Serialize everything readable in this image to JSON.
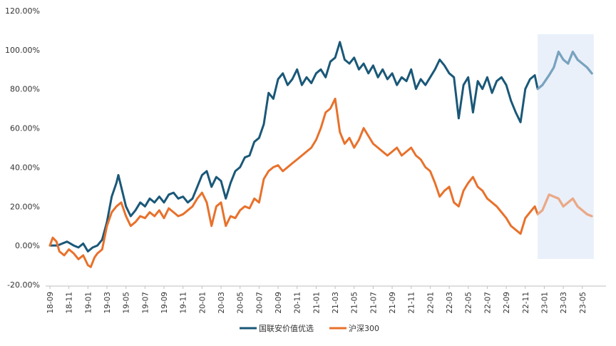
{
  "chart_data": {
    "type": "line",
    "title": "",
    "xlabel": "",
    "ylabel": "",
    "ylim": [
      -20,
      120
    ],
    "y_ticks": [
      -20,
      0,
      20,
      40,
      60,
      80,
      100,
      120
    ],
    "y_tick_labels": [
      "-20.00%",
      "0.00%",
      "20.00%",
      "40.00%",
      "60.00%",
      "80.00%",
      "100.00%",
      "120.00%"
    ],
    "grid": false,
    "legend_position": "bottom-center",
    "x_tick_labels": [
      "18-09",
      "18-11",
      "19-01",
      "19-03",
      "19-05",
      "19-07",
      "19-09",
      "19-11",
      "20-01",
      "20-03",
      "20-05",
      "20-07",
      "20-09",
      "20-11",
      "21-01",
      "21-03",
      "21-05",
      "21-07",
      "21-09",
      "21-11",
      "22-01",
      "22-03",
      "22-05",
      "22-07",
      "22-09",
      "22-11",
      "23-01",
      "23-03",
      "23-05"
    ],
    "highlight_region": {
      "from_month": 51.3,
      "to_month": 57.2,
      "label": ""
    },
    "series": [
      {
        "name": "国联安价值优选",
        "color": "#1a5878",
        "points": [
          [
            0,
            0
          ],
          [
            0.8,
            0
          ],
          [
            1.3,
            1
          ],
          [
            1.8,
            2
          ],
          [
            2.5,
            0
          ],
          [
            3,
            -1
          ],
          [
            3.5,
            1
          ],
          [
            4,
            -3
          ],
          [
            4.5,
            -1
          ],
          [
            5,
            0
          ],
          [
            5.5,
            3
          ],
          [
            6,
            12
          ],
          [
            6.5,
            25
          ],
          [
            7,
            32
          ],
          [
            7.2,
            36
          ],
          [
            7.5,
            30
          ],
          [
            8,
            20
          ],
          [
            8.5,
            15
          ],
          [
            9,
            18
          ],
          [
            9.5,
            22
          ],
          [
            10,
            20
          ],
          [
            10.5,
            24
          ],
          [
            11,
            22
          ],
          [
            11.5,
            25
          ],
          [
            12,
            22
          ],
          [
            12.5,
            26
          ],
          [
            13,
            27
          ],
          [
            13.5,
            24
          ],
          [
            14,
            25
          ],
          [
            14.5,
            22
          ],
          [
            15,
            24
          ],
          [
            15.5,
            30
          ],
          [
            16,
            36
          ],
          [
            16.5,
            38
          ],
          [
            17,
            30
          ],
          [
            17.5,
            35
          ],
          [
            18,
            33
          ],
          [
            18.5,
            24
          ],
          [
            19,
            32
          ],
          [
            19.5,
            38
          ],
          [
            20,
            40
          ],
          [
            20.5,
            45
          ],
          [
            21,
            46
          ],
          [
            21.5,
            53
          ],
          [
            22,
            55
          ],
          [
            22.5,
            62
          ],
          [
            23,
            78
          ],
          [
            23.5,
            75
          ],
          [
            24,
            85
          ],
          [
            24.5,
            88
          ],
          [
            25,
            82
          ],
          [
            25.5,
            85
          ],
          [
            26,
            90
          ],
          [
            26.5,
            82
          ],
          [
            27,
            86
          ],
          [
            27.5,
            83
          ],
          [
            28,
            88
          ],
          [
            28.5,
            90
          ],
          [
            29,
            86
          ],
          [
            29.5,
            94
          ],
          [
            30,
            96
          ],
          [
            30.5,
            104
          ],
          [
            31,
            95
          ],
          [
            31.5,
            93
          ],
          [
            32,
            96
          ],
          [
            32.5,
            90
          ],
          [
            33,
            93
          ],
          [
            33.5,
            88
          ],
          [
            34,
            92
          ],
          [
            34.5,
            86
          ],
          [
            35,
            90
          ],
          [
            35.5,
            85
          ],
          [
            36,
            88
          ],
          [
            36.5,
            82
          ],
          [
            37,
            86
          ],
          [
            37.5,
            84
          ],
          [
            38,
            90
          ],
          [
            38.5,
            80
          ],
          [
            39,
            85
          ],
          [
            39.5,
            82
          ],
          [
            40,
            86
          ],
          [
            40.5,
            90
          ],
          [
            41,
            95
          ],
          [
            41.5,
            92
          ],
          [
            42,
            88
          ],
          [
            42.5,
            86
          ],
          [
            43,
            65
          ],
          [
            43.5,
            82
          ],
          [
            44,
            86
          ],
          [
            44.5,
            68
          ],
          [
            45,
            84
          ],
          [
            45.5,
            80
          ],
          [
            46,
            86
          ],
          [
            46.5,
            78
          ],
          [
            47,
            84
          ],
          [
            47.5,
            86
          ],
          [
            48,
            82
          ],
          [
            48.5,
            74
          ],
          [
            49,
            68
          ],
          [
            49.5,
            63
          ],
          [
            50,
            80
          ],
          [
            50.5,
            85
          ],
          [
            51,
            87
          ],
          [
            51.3,
            80
          ],
          [
            51.8,
            82
          ],
          [
            52.5,
            87
          ],
          [
            53,
            91
          ],
          [
            53.5,
            99
          ],
          [
            54,
            95
          ],
          [
            54.5,
            93
          ],
          [
            55,
            99
          ],
          [
            55.5,
            95
          ],
          [
            56,
            93
          ],
          [
            56.5,
            91
          ],
          [
            57,
            88
          ]
        ]
      },
      {
        "name": "沪深300",
        "color": "#e8712b",
        "points": [
          [
            0,
            0
          ],
          [
            0.3,
            4
          ],
          [
            0.7,
            2
          ],
          [
            1,
            -3
          ],
          [
            1.5,
            -5
          ],
          [
            2,
            -2
          ],
          [
            2.5,
            -4
          ],
          [
            3,
            -7
          ],
          [
            3.5,
            -5
          ],
          [
            4,
            -10
          ],
          [
            4.3,
            -11
          ],
          [
            4.7,
            -6
          ],
          [
            5,
            -4
          ],
          [
            5.5,
            -2
          ],
          [
            6,
            10
          ],
          [
            6.5,
            17
          ],
          [
            7,
            20
          ],
          [
            7.5,
            22
          ],
          [
            8,
            15
          ],
          [
            8.5,
            10
          ],
          [
            9,
            12
          ],
          [
            9.5,
            15
          ],
          [
            10,
            14
          ],
          [
            10.5,
            17
          ],
          [
            11,
            15
          ],
          [
            11.5,
            18
          ],
          [
            12,
            14
          ],
          [
            12.5,
            19
          ],
          [
            13,
            17
          ],
          [
            13.5,
            15
          ],
          [
            14,
            16
          ],
          [
            14.5,
            18
          ],
          [
            15,
            20
          ],
          [
            15.5,
            24
          ],
          [
            16,
            27
          ],
          [
            16.5,
            22
          ],
          [
            17,
            10
          ],
          [
            17.5,
            20
          ],
          [
            18,
            22
          ],
          [
            18.5,
            10
          ],
          [
            19,
            15
          ],
          [
            19.5,
            14
          ],
          [
            20,
            18
          ],
          [
            20.5,
            20
          ],
          [
            21,
            19
          ],
          [
            21.5,
            24
          ],
          [
            22,
            22
          ],
          [
            22.5,
            34
          ],
          [
            23,
            38
          ],
          [
            23.5,
            40
          ],
          [
            24,
            41
          ],
          [
            24.5,
            38
          ],
          [
            25,
            40
          ],
          [
            25.5,
            42
          ],
          [
            26,
            44
          ],
          [
            26.5,
            46
          ],
          [
            27,
            48
          ],
          [
            27.5,
            50
          ],
          [
            28,
            54
          ],
          [
            28.5,
            60
          ],
          [
            29,
            68
          ],
          [
            29.5,
            70
          ],
          [
            30,
            75
          ],
          [
            30.5,
            58
          ],
          [
            31,
            52
          ],
          [
            31.5,
            55
          ],
          [
            32,
            50
          ],
          [
            32.5,
            54
          ],
          [
            33,
            60
          ],
          [
            33.5,
            56
          ],
          [
            34,
            52
          ],
          [
            34.5,
            50
          ],
          [
            35,
            48
          ],
          [
            35.5,
            46
          ],
          [
            36,
            48
          ],
          [
            36.5,
            50
          ],
          [
            37,
            46
          ],
          [
            37.5,
            48
          ],
          [
            38,
            50
          ],
          [
            38.5,
            46
          ],
          [
            39,
            44
          ],
          [
            39.5,
            40
          ],
          [
            40,
            38
          ],
          [
            40.5,
            32
          ],
          [
            41,
            25
          ],
          [
            41.5,
            28
          ],
          [
            42,
            30
          ],
          [
            42.5,
            22
          ],
          [
            43,
            20
          ],
          [
            43.5,
            28
          ],
          [
            44,
            32
          ],
          [
            44.5,
            35
          ],
          [
            45,
            30
          ],
          [
            45.5,
            28
          ],
          [
            46,
            24
          ],
          [
            46.5,
            22
          ],
          [
            47,
            20
          ],
          [
            47.5,
            17
          ],
          [
            48,
            14
          ],
          [
            48.5,
            10
          ],
          [
            49,
            8
          ],
          [
            49.5,
            6
          ],
          [
            50,
            14
          ],
          [
            50.5,
            17
          ],
          [
            51,
            20
          ],
          [
            51.3,
            16
          ],
          [
            51.8,
            18
          ],
          [
            52.5,
            26
          ],
          [
            53,
            25
          ],
          [
            53.5,
            24
          ],
          [
            54,
            20
          ],
          [
            54.5,
            22
          ],
          [
            55,
            24
          ],
          [
            55.5,
            20
          ],
          [
            56,
            18
          ],
          [
            56.5,
            16
          ],
          [
            57,
            15
          ]
        ]
      }
    ]
  }
}
